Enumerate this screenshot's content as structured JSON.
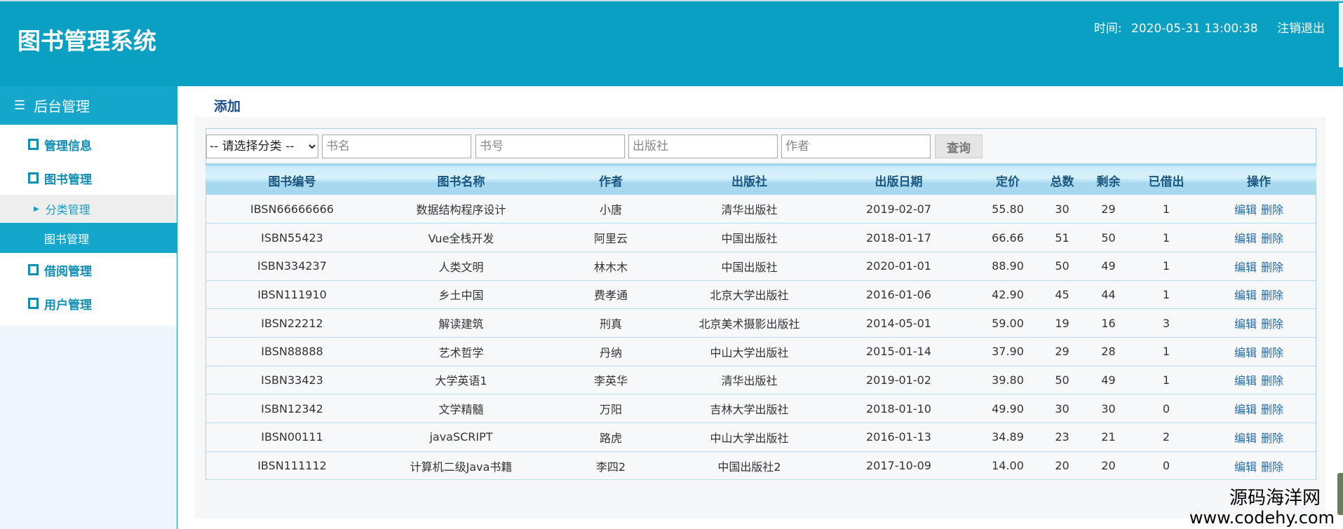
{
  "header": {
    "title": "图书管理系统",
    "time_label": "时间:",
    "time_value": "2020-05-31 13:00:38",
    "logout": "注销退出"
  },
  "sidebar": {
    "heading": "后台管理",
    "items": [
      {
        "label": "管理信息"
      },
      {
        "label": "图书管理"
      },
      {
        "label": "分类管理"
      },
      {
        "label": "图书管理"
      },
      {
        "label": "借阅管理"
      },
      {
        "label": "用户管理"
      }
    ]
  },
  "main": {
    "add_label": "添加",
    "search": {
      "category_selected": "-- 请选择分类 --",
      "name_placeholder": "书名",
      "isbn_placeholder": "书号",
      "publisher_placeholder": "出版社",
      "author_placeholder": "作者",
      "query_label": "查询"
    },
    "table": {
      "headers": [
        "图书编号",
        "图书名称",
        "作者",
        "出版社",
        "出版日期",
        "定价",
        "总数",
        "剩余",
        "已借出",
        "操作"
      ],
      "rows": [
        [
          "IBSN66666666",
          "数据结构程序设计",
          "小唐",
          "清华出版社",
          "2019-02-07",
          "55.80",
          "30",
          "29",
          "1"
        ],
        [
          "ISBN55423",
          "Vue全栈开发",
          "阿里云",
          "中国出版社",
          "2018-01-17",
          "66.66",
          "51",
          "50",
          "1"
        ],
        [
          "ISBN334237",
          "人类文明",
          "林木木",
          "中国出版社",
          "2020-01-01",
          "88.90",
          "50",
          "49",
          "1"
        ],
        [
          "IBSN111910",
          "乡土中国",
          "费孝通",
          "北京大学出版社",
          "2016-01-06",
          "42.90",
          "45",
          "44",
          "1"
        ],
        [
          "IBSN22212",
          "解读建筑",
          "刑真",
          "北京美术摄影出版社",
          "2014-05-01",
          "59.00",
          "19",
          "16",
          "3"
        ],
        [
          "IBSN88888",
          "艺术哲学",
          "丹纳",
          "中山大学出版社",
          "2015-01-14",
          "37.90",
          "29",
          "28",
          "1"
        ],
        [
          "ISBN33423",
          "大学英语1",
          "李英华",
          "清华出版社",
          "2019-01-02",
          "39.80",
          "50",
          "49",
          "1"
        ],
        [
          "ISBN12342",
          "文学精髓",
          "万阳",
          "吉林大学出版社",
          "2018-01-10",
          "49.90",
          "30",
          "30",
          "0"
        ],
        [
          "IBSN00111",
          "javaSCRIPT",
          "路虎",
          "中山大学出版社",
          "2016-01-13",
          "34.89",
          "23",
          "21",
          "2"
        ],
        [
          "IBSN111112",
          "计算机二级Java书籍",
          "李四2",
          "中国出版社2",
          "2017-10-09",
          "14.00",
          "20",
          "20",
          "0"
        ]
      ],
      "edit_label": "编辑",
      "delete_label": "删除"
    }
  },
  "watermark": {
    "line1": "源码海洋网",
    "line2": "www.codehy.com"
  },
  "colors": {
    "header": "#0aa0c3",
    "accent": "#14a7cb",
    "link": "#2a6aa8"
  }
}
